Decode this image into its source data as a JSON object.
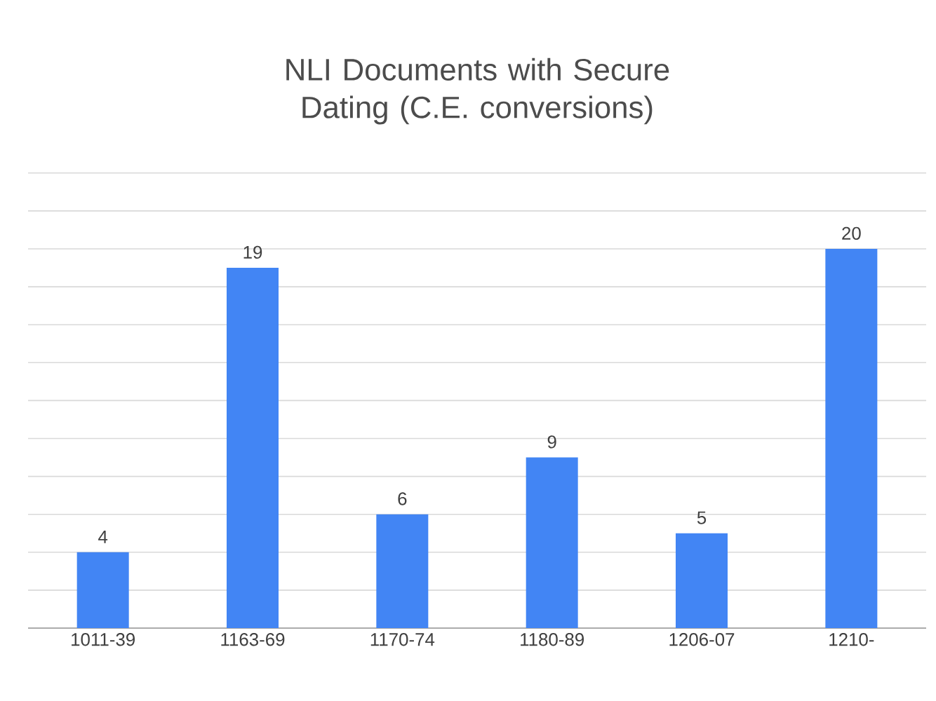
{
  "chart_data": {
    "type": "bar",
    "title": "NLI Documents with Secure Dating (C.E. conversions)",
    "categories": [
      "1011-39",
      "1163-69",
      "1170-74",
      "1180-89",
      "1206-07",
      "1210-"
    ],
    "values": [
      4,
      19,
      6,
      9,
      5,
      20
    ],
    "color": "#4285f4",
    "grid": "y",
    "tick_labels": "x",
    "data_labels": true
  }
}
